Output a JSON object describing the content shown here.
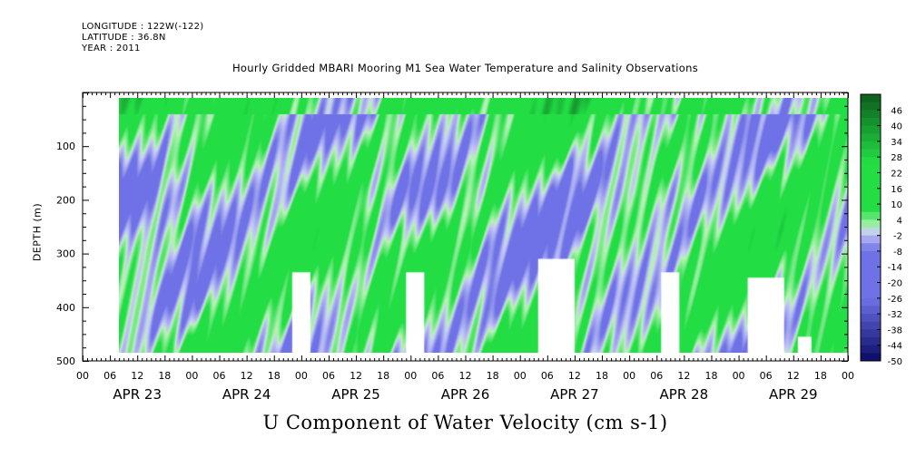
{
  "header": {
    "longitude": "LONGITUDE : 122W(-122)",
    "latitude": "LATITUDE : 36.8N",
    "year": "YEAR : 2011"
  },
  "chart_data": {
    "type": "heatmap",
    "title": "Hourly Gridded MBARI Mooring M1 Sea Water Temperature and Salinity Observations",
    "xlabel": "U Component of Water Velocity (cm s-1)",
    "ylabel": "DEPTH (m)",
    "ylim": [
      500,
      0
    ],
    "y_ticks": [
      100,
      200,
      300,
      400,
      500
    ],
    "x_hour_ticks": [
      "00",
      "06",
      "12",
      "18",
      "00",
      "06",
      "12",
      "18",
      "00",
      "06",
      "12",
      "18",
      "00",
      "06",
      "12",
      "18",
      "00",
      "06",
      "12",
      "18",
      "00",
      "06",
      "12",
      "18",
      "00",
      "06",
      "12",
      "18",
      "00"
    ],
    "x_day_labels": [
      "APR 23",
      "APR 24",
      "APR 25",
      "APR 26",
      "APR 27",
      "APR 28",
      "APR 29"
    ],
    "colorbar_levels": [
      46,
      40,
      34,
      28,
      22,
      16,
      10,
      4,
      -2,
      -8,
      -14,
      -20,
      -26,
      -32,
      -38,
      -44,
      -50
    ],
    "colorbar_range": [
      -50,
      52
    ],
    "data_time_range_hours": [
      8,
      168
    ],
    "data_depth_range_m": [
      10,
      485
    ],
    "gaps": [
      {
        "t": [
          46,
          50
        ],
        "depth": [
          335,
          485
        ]
      },
      {
        "t": [
          71,
          75
        ],
        "depth": [
          335,
          485
        ]
      },
      {
        "t": [
          100,
          108
        ],
        "depth": [
          310,
          485
        ]
      },
      {
        "t": [
          127,
          131
        ],
        "depth": [
          335,
          485
        ]
      },
      {
        "t": [
          146,
          154
        ],
        "depth": [
          345,
          485
        ]
      },
      {
        "t": [
          157,
          160
        ],
        "depth": [
          455,
          485
        ]
      }
    ],
    "colors": {
      "positive_dark": "#0d5c1f",
      "positive_mid": "#22dd44",
      "positive_light": "#b8f2b8",
      "negative_light": "#c4c8f5",
      "negative_mid": "#6f72e6",
      "negative_dark": "#0a0a66"
    }
  }
}
